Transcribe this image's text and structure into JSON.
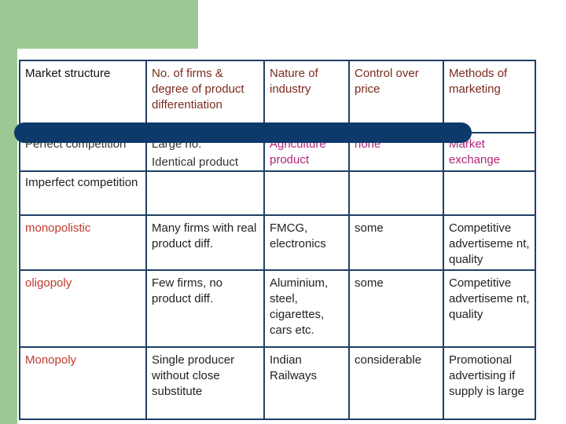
{
  "headers": [
    "Market structure",
    "No. of firms & degree of product differentiation",
    "Nature of industry",
    "Control over price",
    "Methods of marketing"
  ],
  "perfect": {
    "structure": "Perfect competition",
    "firms": "Large no.",
    "firms_detail": "Identical product",
    "industry": "Agriculture product",
    "price": "none",
    "marketing": "Market exchange"
  },
  "imperfect": {
    "structure": "Imperfect competition"
  },
  "rows": [
    {
      "structure": "monopolistic",
      "firms": "Many firms with real product diff.",
      "industry": "FMCG, electronics",
      "price": "some",
      "marketing": "Competitive advertiseme nt, quality"
    },
    {
      "structure": "oligopoly",
      "firms": "Few firms, no product diff.",
      "industry": "Aluminium, steel, cigarettes, cars etc.",
      "price": "some",
      "marketing": "Competitive advertiseme nt, quality"
    },
    {
      "structure": "Monopoly",
      "firms": "Single producer without close substitute",
      "industry": "Indian Railways",
      "price": "considerable",
      "marketing": "Promotional advertising if supply is large"
    }
  ],
  "colors": {
    "green_block": "#9cc893",
    "grid": "#1f3f66",
    "bar": "#0d3a6b",
    "red_text": "#c0392b",
    "magenta_text": "#b0267a",
    "maroon_text": "#7a2a1e"
  }
}
